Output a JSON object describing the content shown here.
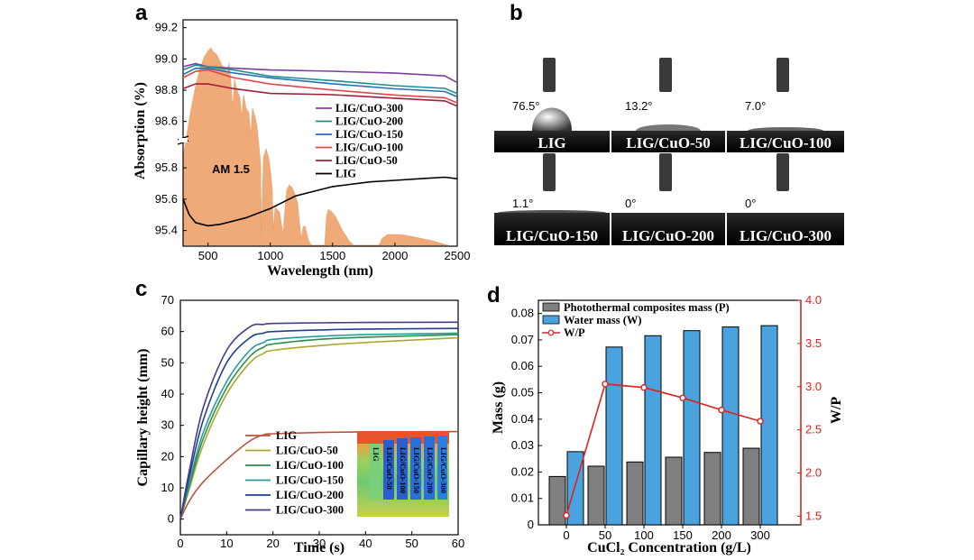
{
  "panels": {
    "a": "a",
    "b": "b",
    "c": "c",
    "d": "d"
  },
  "chart_data": [
    {
      "id": "a",
      "type": "line",
      "xlabel": "Wavelength (nm)",
      "ylabel": "Absorption (%)",
      "xlim": [
        300,
        2500
      ],
      "x_ticks": [
        500,
        1000,
        1500,
        2000,
        2500
      ],
      "y_ticks_upper": [
        "98.6",
        "98.8",
        "99.0",
        "99.2"
      ],
      "y_ticks_lower": [
        "95.4",
        "95.6",
        "95.8"
      ],
      "annotation": "AM 1.5",
      "legend": [
        "LIG/CuO-300",
        "LIG/CuO-200",
        "LIG/CuO-150",
        "LIG/CuO-100",
        "LIG/CuO-50",
        "LIG"
      ],
      "series": [
        {
          "name": "LIG/CuO-300",
          "color": "#7b3fa0",
          "x": [
            300,
            400,
            500,
            700,
            1000,
            1500,
            2000,
            2400,
            2500
          ],
          "y": [
            98.95,
            98.97,
            98.95,
            98.94,
            98.93,
            98.92,
            98.91,
            98.89,
            98.85
          ]
        },
        {
          "name": "LIG/CuO-200",
          "color": "#1f8f8a",
          "x": [
            300,
            400,
            500,
            700,
            1000,
            1500,
            2000,
            2400,
            2500
          ],
          "y": [
            98.93,
            98.96,
            98.95,
            98.93,
            98.89,
            98.86,
            98.83,
            98.81,
            98.78
          ]
        },
        {
          "name": "LIG/CuO-150",
          "color": "#2a6fb5",
          "x": [
            300,
            400,
            500,
            700,
            1000,
            1500,
            2000,
            2400,
            2500
          ],
          "y": [
            98.9,
            98.94,
            98.94,
            98.91,
            98.88,
            98.84,
            98.81,
            98.79,
            98.76
          ]
        },
        {
          "name": "LIG/CuO-100",
          "color": "#e0464a",
          "x": [
            300,
            400,
            500,
            700,
            1000,
            1500,
            2000,
            2400,
            2500
          ],
          "y": [
            98.88,
            98.92,
            98.93,
            98.88,
            98.84,
            98.8,
            98.77,
            98.75,
            98.72
          ]
        },
        {
          "name": "LIG/CuO-50",
          "color": "#a0203c",
          "x": [
            300,
            400,
            500,
            700,
            1000,
            1500,
            2000,
            2400,
            2500
          ],
          "y": [
            98.81,
            98.84,
            98.84,
            98.81,
            98.78,
            98.77,
            98.75,
            98.73,
            98.7
          ]
        },
        {
          "name": "LIG",
          "color": "#000000",
          "x": [
            300,
            350,
            400,
            500,
            600,
            800,
            1000,
            1200,
            1500,
            1800,
            2000,
            2200,
            2400,
            2500
          ],
          "y": [
            95.6,
            95.5,
            95.45,
            95.43,
            95.44,
            95.48,
            95.54,
            95.62,
            95.68,
            95.71,
            95.72,
            95.73,
            95.74,
            95.73
          ]
        }
      ]
    },
    {
      "id": "b",
      "type": "other",
      "samples": [
        {
          "label": "LIG",
          "angle": "76.5°"
        },
        {
          "label": "LIG/CuO-50",
          "angle": "13.2°"
        },
        {
          "label": "LIG/CuO-100",
          "angle": "7.0°"
        },
        {
          "label": "LIG/CuO-150",
          "angle": "1.1°"
        },
        {
          "label": "LIG/CuO-200",
          "angle": "0°"
        },
        {
          "label": "LIG/CuO-300",
          "angle": "0°"
        }
      ]
    },
    {
      "id": "c",
      "type": "line",
      "xlabel": "Time (s)",
      "ylabel": "Capillary height (mm)",
      "xlim": [
        0,
        60
      ],
      "ylim": [
        -5,
        70
      ],
      "x_ticks": [
        "0",
        "10",
        "20",
        "30",
        "40",
        "50",
        "60"
      ],
      "y_ticks": [
        "0",
        "10",
        "20",
        "30",
        "40",
        "50",
        "60",
        "70"
      ],
      "inset_labels": [
        "LIG",
        "LIG/CuO-50",
        "LIG/CuO-100",
        "LIG/CuO-150",
        "LIG/CuO-200",
        "LIG/CuO-300"
      ],
      "series": [
        {
          "name": "LIG",
          "color": "#b5563a",
          "x": [
            0,
            2,
            5,
            10,
            15,
            18,
            20,
            30,
            40,
            60
          ],
          "y": [
            0,
            6,
            12,
            19,
            25,
            27,
            27.3,
            27.7,
            27.9,
            28
          ]
        },
        {
          "name": "LIG/CuO-50",
          "color": "#b0a62a",
          "x": [
            0,
            2,
            5,
            10,
            15,
            18,
            20,
            30,
            40,
            60
          ],
          "y": [
            0,
            10,
            24,
            40,
            50,
            53,
            54,
            55.5,
            56.5,
            58
          ]
        },
        {
          "name": "LIG/CuO-100",
          "color": "#2a8f4a",
          "x": [
            0,
            2,
            5,
            10,
            15,
            18,
            20,
            30,
            40,
            60
          ],
          "y": [
            0,
            11,
            26,
            42,
            52,
            55,
            56,
            57.5,
            58.2,
            59
          ]
        },
        {
          "name": "LIG/CuO-150",
          "color": "#2a9a9a",
          "x": [
            0,
            2,
            5,
            10,
            15,
            18,
            20,
            30,
            40,
            60
          ],
          "y": [
            0,
            12,
            28,
            44,
            54,
            56.5,
            57.5,
            58.5,
            59,
            59.5
          ]
        },
        {
          "name": "LIG/CuO-200",
          "color": "#1f3f8f",
          "x": [
            0,
            2,
            5,
            10,
            15,
            18,
            20,
            30,
            40,
            60
          ],
          "y": [
            0,
            14,
            32,
            50,
            58,
            59.5,
            60,
            60.5,
            60.8,
            61
          ]
        },
        {
          "name": "LIG/CuO-300",
          "color": "#4a3a8a",
          "x": [
            0,
            2,
            5,
            10,
            15,
            18,
            20,
            30,
            40,
            60
          ],
          "y": [
            0,
            16,
            36,
            54,
            61.5,
            62.3,
            62.6,
            62.8,
            62.9,
            63
          ]
        }
      ]
    },
    {
      "id": "d",
      "type": "bar",
      "xlabel": "CuCl₂ Concentration (g/L)",
      "ylabel": "Mass (g)",
      "y2label": "W/P",
      "categories": [
        "0",
        "50",
        "100",
        "150",
        "200",
        "300"
      ],
      "ylim": [
        0,
        0.085
      ],
      "y2lim": [
        1.4,
        4.0
      ],
      "y_ticks": [
        "0",
        "0.01",
        "0.02",
        "0.03",
        "0.04",
        "0.05",
        "0.06",
        "0.07",
        "0.08"
      ],
      "y2_ticks": [
        "1.5",
        "2.0",
        "2.5",
        "3.0",
        "3.5",
        "4.0"
      ],
      "legend": [
        "Photothermal composites mass (P)",
        "Water mass (W)",
        "W/P"
      ],
      "series": [
        {
          "name": "Photothermal composites mass (P)",
          "color": "#7f7f7f",
          "values": [
            0.0183,
            0.0222,
            0.0238,
            0.0256,
            0.0274,
            0.029
          ]
        },
        {
          "name": "Water mass (W)",
          "color": "#4aa3df",
          "values": [
            0.0277,
            0.0673,
            0.0716,
            0.0735,
            0.0749,
            0.0754
          ]
        },
        {
          "name": "W/P",
          "color": "#e0201b",
          "values": [
            1.51,
            3.03,
            2.99,
            2.87,
            2.73,
            2.6
          ]
        }
      ]
    }
  ]
}
